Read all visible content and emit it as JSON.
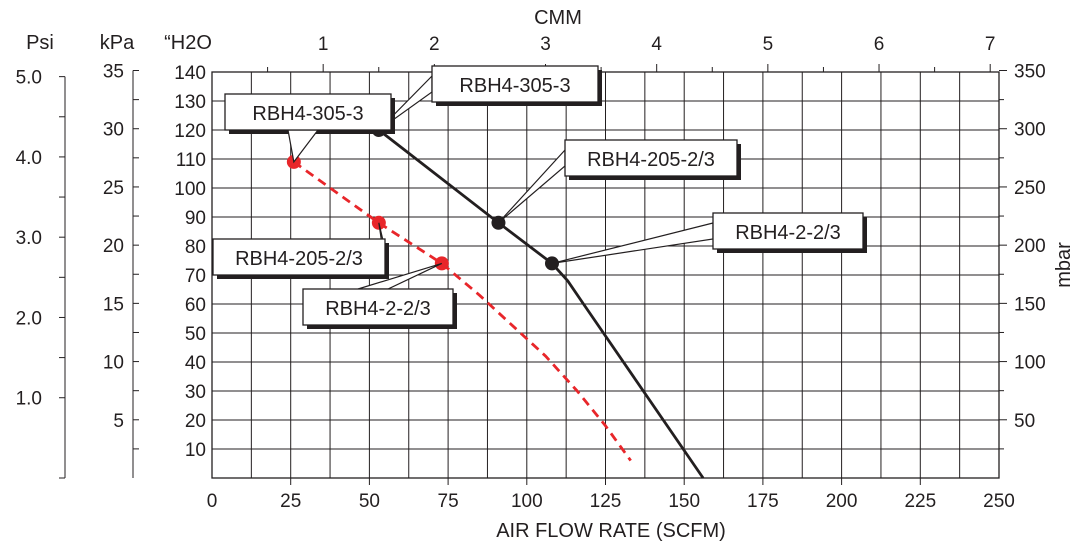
{
  "chart_data": {
    "type": "line",
    "xlabel": "AIR FLOW RATE (SCFM)",
    "x_ticks": [
      0,
      25,
      50,
      75,
      100,
      125,
      150,
      175,
      200,
      225,
      250
    ],
    "xlim": [
      0,
      250
    ],
    "top_axis": {
      "label": "CMM",
      "ticks": [
        1,
        2,
        3,
        4,
        5,
        6,
        7
      ]
    },
    "ylim": [
      0,
      140
    ],
    "left_axes": {
      "h2o": {
        "label": "“H2O",
        "ticks": [
          10,
          20,
          30,
          40,
          50,
          60,
          70,
          80,
          90,
          100,
          110,
          120,
          130,
          140
        ]
      },
      "kpa": {
        "label": "kPa",
        "ticks": [
          5,
          10,
          15,
          20,
          25,
          30,
          35
        ]
      },
      "psi": {
        "label": "Psi",
        "ticks": [
          "1.0",
          "2.0",
          "3.0",
          "4.0",
          "5.0"
        ]
      }
    },
    "right_axis": {
      "label": "mbar",
      "ticks": [
        50,
        100,
        150,
        200,
        250,
        300,
        350
      ]
    },
    "grid": true,
    "series": [
      {
        "style": "solid",
        "color": "#231f20",
        "x": [
          53,
          91,
          108,
          113,
          118,
          156
        ],
        "y": [
          120,
          88,
          74,
          68,
          60,
          0
        ]
      },
      {
        "style": "dashed",
        "color": "#e8262a",
        "x": [
          26,
          53,
          73,
          85,
          96,
          106,
          116,
          125,
          133
        ],
        "y": [
          109,
          88,
          74,
          63,
          52,
          42,
          30,
          18,
          6
        ]
      }
    ],
    "annotations": [
      {
        "text": "RBH4-305-3",
        "x": 53,
        "y": 120,
        "series": 0
      },
      {
        "text": "RBH4-205-2/3",
        "x": 91,
        "y": 88,
        "series": 0
      },
      {
        "text": "RBH4-2-2/3",
        "x": 108,
        "y": 74,
        "series": 0
      },
      {
        "text": "RBH4-305-3",
        "x": 26,
        "y": 109,
        "series": 1
      },
      {
        "text": "RBH4-205-2/3",
        "x": 53,
        "y": 88,
        "series": 1
      },
      {
        "text": "RBH4-2-2/3",
        "x": 73,
        "y": 74,
        "series": 1
      }
    ]
  }
}
